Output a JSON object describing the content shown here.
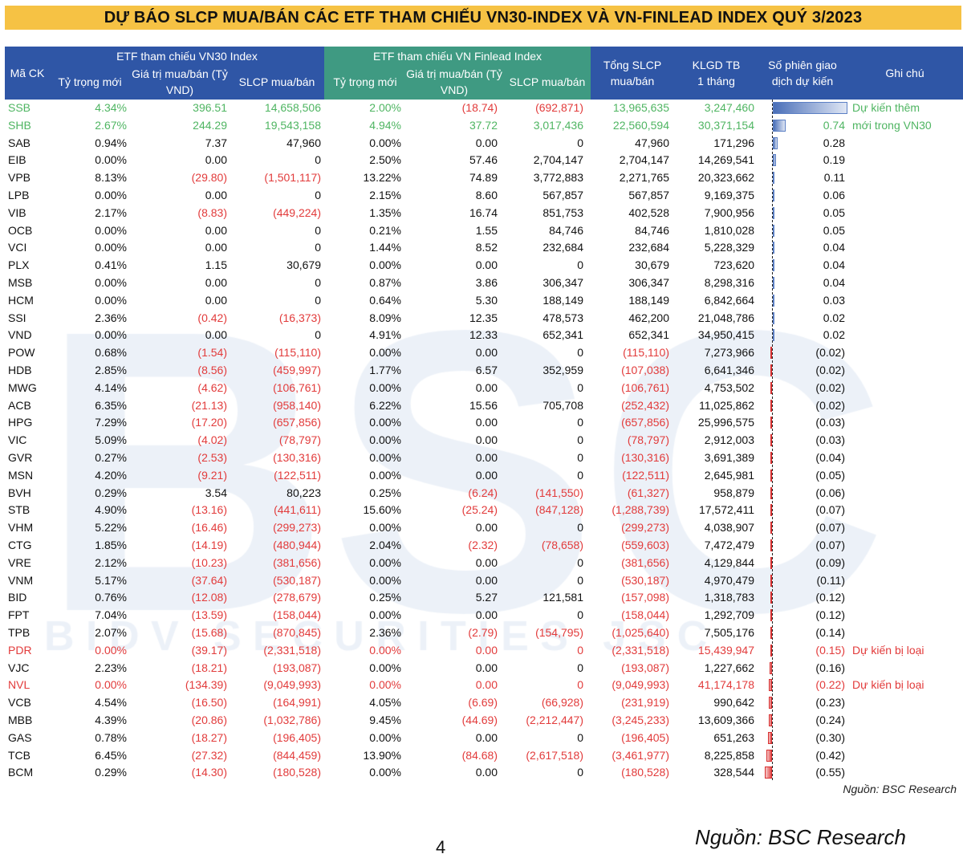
{
  "title": "DỰ BÁO SLCP MUA/BÁN CÁC ETF THAM CHIẾU VN30-INDEX VÀ VN-FINLEAD INDEX QUÝ 3/2023",
  "watermark": {
    "logo": "BSC",
    "text": "BIDV SECURITIES JSC"
  },
  "header": {
    "ticker": "Mã CK",
    "group_vn30": "ETF tham chiếu VN30 Index",
    "group_finlead": "ETF tham chiếu VN Finlead Index",
    "weight": "Tỷ trọng mới",
    "value": "Giá trị mua/bán (Tỷ VND)",
    "shares": "SLCP mua/bán",
    "total": "Tổng SLCP mua/bán",
    "avg_volume": "KLGD TB 1 tháng",
    "days": "Số phiên giao dịch dự kiến",
    "note": "Ghi chú"
  },
  "colors": {
    "title_bg": "#f6c244",
    "header_blue": "#2f56a6",
    "header_green": "#3f9a82",
    "negative": "#e23b3b",
    "added": "#4fb562"
  },
  "rows": [
    {
      "t": "SSB",
      "w1": "4.34%",
      "v1": "396.51",
      "s1": "14,658,506",
      "w2": "2.00%",
      "v2": "(18.74)",
      "s2": "(692,871)",
      "tot": "13,965,635",
      "kl": "3,247,460",
      "d": "4.30",
      "dv": 4.3,
      "note": "Dự kiến thêm",
      "status": "add"
    },
    {
      "t": "SHB",
      "w1": "2.67%",
      "v1": "244.29",
      "s1": "19,543,158",
      "w2": "4.94%",
      "v2": "37.72",
      "s2": "3,017,436",
      "tot": "22,560,594",
      "kl": "30,371,154",
      "d": "0.74",
      "dv": 0.74,
      "note": "mới trong VN30",
      "status": "add"
    },
    {
      "t": "SAB",
      "w1": "0.94%",
      "v1": "7.37",
      "s1": "47,960",
      "w2": "0.00%",
      "v2": "0.00",
      "s2": "0",
      "tot": "47,960",
      "kl": "171,296",
      "d": "0.28",
      "dv": 0.28
    },
    {
      "t": "EIB",
      "w1": "0.00%",
      "v1": "0.00",
      "s1": "0",
      "w2": "2.50%",
      "v2": "57.46",
      "s2": "2,704,147",
      "tot": "2,704,147",
      "kl": "14,269,541",
      "d": "0.19",
      "dv": 0.19
    },
    {
      "t": "VPB",
      "w1": "8.13%",
      "v1": "(29.80)",
      "s1": "(1,501,117)",
      "w2": "13.22%",
      "v2": "74.89",
      "s2": "3,772,883",
      "tot": "2,271,765",
      "kl": "20,323,662",
      "d": "0.11",
      "dv": 0.11
    },
    {
      "t": "LPB",
      "w1": "0.00%",
      "v1": "0.00",
      "s1": "0",
      "w2": "2.15%",
      "v2": "8.60",
      "s2": "567,857",
      "tot": "567,857",
      "kl": "9,169,375",
      "d": "0.06",
      "dv": 0.06
    },
    {
      "t": "VIB",
      "w1": "2.17%",
      "v1": "(8.83)",
      "s1": "(449,224)",
      "w2": "1.35%",
      "v2": "16.74",
      "s2": "851,753",
      "tot": "402,528",
      "kl": "7,900,956",
      "d": "0.05",
      "dv": 0.05
    },
    {
      "t": "OCB",
      "w1": "0.00%",
      "v1": "0.00",
      "s1": "0",
      "w2": "0.21%",
      "v2": "1.55",
      "s2": "84,746",
      "tot": "84,746",
      "kl": "1,810,028",
      "d": "0.05",
      "dv": 0.05
    },
    {
      "t": "VCI",
      "w1": "0.00%",
      "v1": "0.00",
      "s1": "0",
      "w2": "1.44%",
      "v2": "8.52",
      "s2": "232,684",
      "tot": "232,684",
      "kl": "5,228,329",
      "d": "0.04",
      "dv": 0.04
    },
    {
      "t": "PLX",
      "w1": "0.41%",
      "v1": "1.15",
      "s1": "30,679",
      "w2": "0.00%",
      "v2": "0.00",
      "s2": "0",
      "tot": "30,679",
      "kl": "723,620",
      "d": "0.04",
      "dv": 0.04
    },
    {
      "t": "MSB",
      "w1": "0.00%",
      "v1": "0.00",
      "s1": "0",
      "w2": "0.87%",
      "v2": "3.86",
      "s2": "306,347",
      "tot": "306,347",
      "kl": "8,298,316",
      "d": "0.04",
      "dv": 0.04
    },
    {
      "t": "HCM",
      "w1": "0.00%",
      "v1": "0.00",
      "s1": "0",
      "w2": "0.64%",
      "v2": "5.30",
      "s2": "188,149",
      "tot": "188,149",
      "kl": "6,842,664",
      "d": "0.03",
      "dv": 0.03
    },
    {
      "t": "SSI",
      "w1": "2.36%",
      "v1": "(0.42)",
      "s1": "(16,373)",
      "w2": "8.09%",
      "v2": "12.35",
      "s2": "478,573",
      "tot": "462,200",
      "kl": "21,048,786",
      "d": "0.02",
      "dv": 0.02
    },
    {
      "t": "VND",
      "w1": "0.00%",
      "v1": "0.00",
      "s1": "0",
      "w2": "4.91%",
      "v2": "12.33",
      "s2": "652,341",
      "tot": "652,341",
      "kl": "34,950,415",
      "d": "0.02",
      "dv": 0.02
    },
    {
      "t": "POW",
      "w1": "0.68%",
      "v1": "(1.54)",
      "s1": "(115,110)",
      "w2": "0.00%",
      "v2": "0.00",
      "s2": "0",
      "tot": "(115,110)",
      "kl": "7,273,966",
      "d": "(0.02)",
      "dv": -0.02
    },
    {
      "t": "HDB",
      "w1": "2.85%",
      "v1": "(8.56)",
      "s1": "(459,997)",
      "w2": "1.77%",
      "v2": "6.57",
      "s2": "352,959",
      "tot": "(107,038)",
      "kl": "6,641,346",
      "d": "(0.02)",
      "dv": -0.02
    },
    {
      "t": "MWG",
      "w1": "4.14%",
      "v1": "(4.62)",
      "s1": "(106,761)",
      "w2": "0.00%",
      "v2": "0.00",
      "s2": "0",
      "tot": "(106,761)",
      "kl": "4,753,502",
      "d": "(0.02)",
      "dv": -0.02
    },
    {
      "t": "ACB",
      "w1": "6.35%",
      "v1": "(21.13)",
      "s1": "(958,140)",
      "w2": "6.22%",
      "v2": "15.56",
      "s2": "705,708",
      "tot": "(252,432)",
      "kl": "11,025,862",
      "d": "(0.02)",
      "dv": -0.02
    },
    {
      "t": "HPG",
      "w1": "7.29%",
      "v1": "(17.20)",
      "s1": "(657,856)",
      "w2": "0.00%",
      "v2": "0.00",
      "s2": "0",
      "tot": "(657,856)",
      "kl": "25,996,575",
      "d": "(0.03)",
      "dv": -0.03
    },
    {
      "t": "VIC",
      "w1": "5.09%",
      "v1": "(4.02)",
      "s1": "(78,797)",
      "w2": "0.00%",
      "v2": "0.00",
      "s2": "0",
      "tot": "(78,797)",
      "kl": "2,912,003",
      "d": "(0.03)",
      "dv": -0.03
    },
    {
      "t": "GVR",
      "w1": "0.27%",
      "v1": "(2.53)",
      "s1": "(130,316)",
      "w2": "0.00%",
      "v2": "0.00",
      "s2": "0",
      "tot": "(130,316)",
      "kl": "3,691,389",
      "d": "(0.04)",
      "dv": -0.04
    },
    {
      "t": "MSN",
      "w1": "4.20%",
      "v1": "(9.21)",
      "s1": "(122,511)",
      "w2": "0.00%",
      "v2": "0.00",
      "s2": "0",
      "tot": "(122,511)",
      "kl": "2,645,981",
      "d": "(0.05)",
      "dv": -0.05
    },
    {
      "t": "BVH",
      "w1": "0.29%",
      "v1": "3.54",
      "s1": "80,223",
      "w2": "0.25%",
      "v2": "(6.24)",
      "s2": "(141,550)",
      "tot": "(61,327)",
      "kl": "958,879",
      "d": "(0.06)",
      "dv": -0.06
    },
    {
      "t": "STB",
      "w1": "4.90%",
      "v1": "(13.16)",
      "s1": "(441,611)",
      "w2": "15.60%",
      "v2": "(25.24)",
      "s2": "(847,128)",
      "tot": "(1,288,739)",
      "kl": "17,572,411",
      "d": "(0.07)",
      "dv": -0.07
    },
    {
      "t": "VHM",
      "w1": "5.22%",
      "v1": "(16.46)",
      "s1": "(299,273)",
      "w2": "0.00%",
      "v2": "0.00",
      "s2": "0",
      "tot": "(299,273)",
      "kl": "4,038,907",
      "d": "(0.07)",
      "dv": -0.07
    },
    {
      "t": "CTG",
      "w1": "1.85%",
      "v1": "(14.19)",
      "s1": "(480,944)",
      "w2": "2.04%",
      "v2": "(2.32)",
      "s2": "(78,658)",
      "tot": "(559,603)",
      "kl": "7,472,479",
      "d": "(0.07)",
      "dv": -0.07
    },
    {
      "t": "VRE",
      "w1": "2.12%",
      "v1": "(10.23)",
      "s1": "(381,656)",
      "w2": "0.00%",
      "v2": "0.00",
      "s2": "0",
      "tot": "(381,656)",
      "kl": "4,129,844",
      "d": "(0.09)",
      "dv": -0.09
    },
    {
      "t": "VNM",
      "w1": "5.17%",
      "v1": "(37.64)",
      "s1": "(530,187)",
      "w2": "0.00%",
      "v2": "0.00",
      "s2": "0",
      "tot": "(530,187)",
      "kl": "4,970,479",
      "d": "(0.11)",
      "dv": -0.11
    },
    {
      "t": "BID",
      "w1": "0.76%",
      "v1": "(12.08)",
      "s1": "(278,679)",
      "w2": "0.25%",
      "v2": "5.27",
      "s2": "121,581",
      "tot": "(157,098)",
      "kl": "1,318,783",
      "d": "(0.12)",
      "dv": -0.12
    },
    {
      "t": "FPT",
      "w1": "7.04%",
      "v1": "(13.59)",
      "s1": "(158,044)",
      "w2": "0.00%",
      "v2": "0.00",
      "s2": "0",
      "tot": "(158,044)",
      "kl": "1,292,709",
      "d": "(0.12)",
      "dv": -0.12
    },
    {
      "t": "TPB",
      "w1": "2.07%",
      "v1": "(15.68)",
      "s1": "(870,845)",
      "w2": "2.36%",
      "v2": "(2.79)",
      "s2": "(154,795)",
      "tot": "(1,025,640)",
      "kl": "7,505,176",
      "d": "(0.14)",
      "dv": -0.14
    },
    {
      "t": "PDR",
      "w1": "0.00%",
      "v1": "(39.17)",
      "s1": "(2,331,518)",
      "w2": "0.00%",
      "v2": "0.00",
      "s2": "0",
      "tot": "(2,331,518)",
      "kl": "15,439,947",
      "d": "(0.15)",
      "dv": -0.15,
      "note": "Dự kiến bị loại",
      "status": "remove"
    },
    {
      "t": "VJC",
      "w1": "2.23%",
      "v1": "(18.21)",
      "s1": "(193,087)",
      "w2": "0.00%",
      "v2": "0.00",
      "s2": "0",
      "tot": "(193,087)",
      "kl": "1,227,662",
      "d": "(0.16)",
      "dv": -0.16
    },
    {
      "t": "NVL",
      "w1": "0.00%",
      "v1": "(134.39)",
      "s1": "(9,049,993)",
      "w2": "0.00%",
      "v2": "0.00",
      "s2": "0",
      "tot": "(9,049,993)",
      "kl": "41,174,178",
      "d": "(0.22)",
      "dv": -0.22,
      "note": "Dự kiến bị loại",
      "status": "remove"
    },
    {
      "t": "VCB",
      "w1": "4.54%",
      "v1": "(16.50)",
      "s1": "(164,991)",
      "w2": "4.05%",
      "v2": "(6.69)",
      "s2": "(66,928)",
      "tot": "(231,919)",
      "kl": "990,642",
      "d": "(0.23)",
      "dv": -0.23
    },
    {
      "t": "MBB",
      "w1": "4.39%",
      "v1": "(20.86)",
      "s1": "(1,032,786)",
      "w2": "9.45%",
      "v2": "(44.69)",
      "s2": "(2,212,447)",
      "tot": "(3,245,233)",
      "kl": "13,609,366",
      "d": "(0.24)",
      "dv": -0.24
    },
    {
      "t": "GAS",
      "w1": "0.78%",
      "v1": "(18.27)",
      "s1": "(196,405)",
      "w2": "0.00%",
      "v2": "0.00",
      "s2": "0",
      "tot": "(196,405)",
      "kl": "651,263",
      "d": "(0.30)",
      "dv": -0.3
    },
    {
      "t": "TCB",
      "w1": "6.45%",
      "v1": "(27.32)",
      "s1": "(844,459)",
      "w2": "13.90%",
      "v2": "(84.68)",
      "s2": "(2,617,518)",
      "tot": "(3,461,977)",
      "kl": "8,225,858",
      "d": "(0.42)",
      "dv": -0.42
    },
    {
      "t": "BCM",
      "w1": "0.29%",
      "v1": "(14.30)",
      "s1": "(180,528)",
      "w2": "0.00%",
      "v2": "0.00",
      "s2": "0",
      "tot": "(180,528)",
      "kl": "328,544",
      "d": "(0.55)",
      "dv": -0.55
    }
  ],
  "source_small": "Nguồn: BSC Research",
  "source_large": "Nguồn: BSC Research",
  "page_number": "4"
}
